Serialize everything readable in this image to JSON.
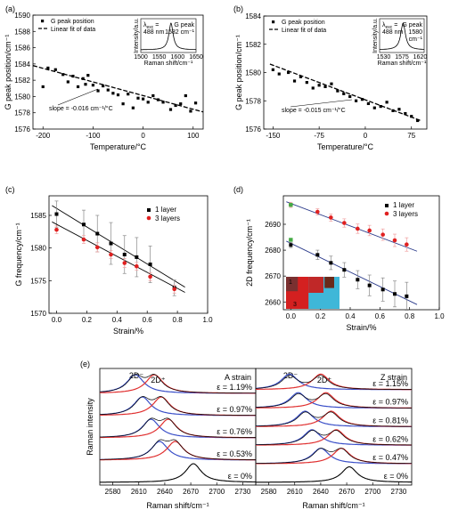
{
  "chart_data": [
    {
      "type": "scatter",
      "panel_label": "(a)",
      "xlabel": "Temperature/°C",
      "ylabel": "G peak position/cm⁻¹",
      "xlim": [
        -220,
        120
      ],
      "ylim": [
        1576,
        1590
      ],
      "xticks": [
        -200,
        -100,
        0,
        100
      ],
      "yticks": [
        1576,
        1578,
        1580,
        1582,
        1584,
        1586,
        1588,
        1590
      ],
      "legend": [
        "G peak position",
        "Linear fit of data"
      ],
      "annotation": "slope = -0.016 cm⁻¹/°C",
      "fit": {
        "x": [
          -220,
          120
        ],
        "y": [
          1583.8,
          1578.1
        ]
      },
      "series": [
        {
          "name": "G peak position",
          "x": [
            -200,
            -190,
            -175,
            -160,
            -150,
            -140,
            -130,
            -120,
            -115,
            -110,
            -100,
            -90,
            -80,
            -70,
            -60,
            -50,
            -40,
            -30,
            -20,
            -10,
            0,
            10,
            20,
            30,
            40,
            55,
            65,
            75,
            85,
            95,
            105
          ],
          "y": [
            1581.2,
            1583.5,
            1583.3,
            1582.7,
            1581.8,
            1582.5,
            1581.2,
            1582.2,
            1581.5,
            1582.6,
            1581.4,
            1580.7,
            1581.3,
            1580.8,
            1580.4,
            1580.2,
            1579.1,
            1580.3,
            1578.6,
            1579.8,
            1579.7,
            1579.3,
            1580.1,
            1579.6,
            1579.3,
            1578.4,
            1578.9,
            1579.1,
            1580.1,
            1578.2,
            1579.2
          ]
        }
      ],
      "inset": {
        "xlabel": "Raman shift/cm⁻¹",
        "ylabel": "Intensity/a.u.",
        "xticks": [
          1500,
          1550,
          1600,
          1650
        ],
        "lines": [
          "λ",
          "exc",
          "=",
          "488 nm"
        ],
        "peak_lines": [
          "G peak",
          "1582 cm⁻¹"
        ]
      }
    },
    {
      "type": "scatter",
      "panel_label": "(b)",
      "xlabel": "Temperature/°C",
      "ylabel": "G peak position/cm⁻¹",
      "xlim": [
        -165,
        100
      ],
      "ylim": [
        1576,
        1584
      ],
      "xticks": [
        -150,
        -75,
        0,
        75
      ],
      "yticks": [
        1576,
        1578,
        1580,
        1582,
        1584
      ],
      "legend": [
        "G peak position",
        "Linear fit of data"
      ],
      "annotation": "slope = -0.015 cm⁻¹/°C",
      "fit": {
        "x": [
          -155,
          90
        ],
        "y": [
          1580.6,
          1576.6
        ]
      },
      "series": [
        {
          "name": "G peak position",
          "x": [
            -150,
            -140,
            -125,
            -115,
            -105,
            -95,
            -85,
            -75,
            -65,
            -55,
            -45,
            -35,
            -25,
            -15,
            -5,
            5,
            15,
            25,
            35,
            45,
            55,
            65,
            75,
            85
          ],
          "y": [
            1580.2,
            1579.9,
            1580.0,
            1579.4,
            1579.7,
            1579.3,
            1578.9,
            1579.1,
            1579.0,
            1579.2,
            1578.7,
            1578.5,
            1578.3,
            1578.0,
            1578.1,
            1577.8,
            1577.5,
            1577.6,
            1577.9,
            1577.3,
            1577.4,
            1577.1,
            1576.9,
            1576.6
          ]
        }
      ],
      "inset": {
        "xlabel": "Raman shift/cm⁻¹",
        "ylabel": "Intensity/a.u.",
        "xticks": [
          1530,
          1575,
          1620
        ],
        "lines": [
          "λ",
          "exc",
          "=",
          "488 nm"
        ],
        "peak_lines": [
          "G peak",
          "1580",
          "cm⁻¹"
        ]
      }
    },
    {
      "type": "scatter",
      "panel_label": "(c)",
      "xlabel": "Strain/%",
      "ylabel": "G frequency/cm⁻¹",
      "xlim": [
        -0.05,
        1.0
      ],
      "ylim": [
        1570,
        1588
      ],
      "xticks": [
        0.0,
        0.2,
        0.4,
        0.6,
        0.8,
        1.0
      ],
      "yticks": [
        1570,
        1575,
        1580,
        1585
      ],
      "legend": [
        "1 layer",
        "3 layers"
      ],
      "series": [
        {
          "name": "1 layer",
          "color": "#000000",
          "marker": "square",
          "x": [
            0.0,
            0.18,
            0.27,
            0.36,
            0.45,
            0.53,
            0.62,
            0.78
          ],
          "y": [
            1585.2,
            1583.6,
            1582.2,
            1580.7,
            1579.0,
            1578.6,
            1577.5,
            1573.9
          ],
          "err": [
            2.0,
            2.2,
            2.8,
            3.2,
            2.9,
            3.0,
            2.8,
            1.2
          ],
          "fit": {
            "x": [
              -0.03,
              0.85
            ],
            "y": [
              1586.5,
              1574.0
            ]
          }
        },
        {
          "name": "3 layers",
          "color": "#e02020",
          "marker": "circle",
          "x": [
            0.0,
            0.18,
            0.27,
            0.36,
            0.45,
            0.53,
            0.62,
            0.78
          ],
          "y": [
            1582.8,
            1581.3,
            1580.1,
            1579.0,
            1577.7,
            1577.2,
            1575.6,
            1573.7
          ],
          "err": [
            0.6,
            0.6,
            0.7,
            0.6,
            0.7,
            0.6,
            0.6,
            0.6
          ],
          "fit": {
            "x": [
              -0.03,
              0.85
            ],
            "y": [
              1584.0,
              1573.2
            ]
          }
        }
      ]
    },
    {
      "type": "scatter",
      "panel_label": "(d)",
      "xlabel": "Strain/%",
      "ylabel": "2D frequency/cm⁻¹",
      "xlim": [
        -0.05,
        1.0
      ],
      "ylim": [
        2657,
        2701
      ],
      "xticks": [
        0.0,
        0.2,
        0.4,
        0.6,
        0.8,
        1.0
      ],
      "yticks": [
        2660,
        2670,
        2680,
        2690
      ],
      "legend": [
        "1 layer",
        "3 layers"
      ],
      "inset_labels": [
        "1",
        "3"
      ],
      "series": [
        {
          "name": "1 layer",
          "color": "#000000",
          "marker": "square",
          "x": [
            0.0,
            0.18,
            0.27,
            0.36,
            0.45,
            0.53,
            0.62,
            0.7,
            0.78
          ],
          "y": [
            2682.0,
            2678.2,
            2675.1,
            2672.4,
            2668.6,
            2666.4,
            2664.8,
            2663.1,
            2662.2
          ],
          "err": [
            1.0,
            1.8,
            2.6,
            2.8,
            3.5,
            4.0,
            4.5,
            5.0,
            5.4
          ],
          "fit": {
            "x": [
              -0.03,
              0.85
            ],
            "y": [
              2683.5,
              2659.0
            ]
          }
        },
        {
          "name": "3 layers",
          "color": "#e02020",
          "marker": "circle",
          "x": [
            0.0,
            0.18,
            0.27,
            0.36,
            0.45,
            0.53,
            0.62,
            0.7,
            0.78
          ],
          "y": [
            2697.5,
            2694.8,
            2692.6,
            2690.5,
            2688.3,
            2687.6,
            2686.0,
            2683.8,
            2682.2
          ],
          "err": [
            1.0,
            1.2,
            1.4,
            1.6,
            1.8,
            2.0,
            2.2,
            2.4,
            2.6
          ],
          "fit": {
            "x": [
              -0.03,
              0.85
            ],
            "y": [
              2698.7,
              2679.6
            ]
          }
        }
      ],
      "highlight_points": [
        {
          "x": 0.0,
          "y": 2697.5,
          "color": "#44aa44"
        },
        {
          "x": 0.0,
          "y": 2684.0,
          "color": "#44aa44"
        }
      ]
    },
    {
      "type": "line",
      "panel_label": "(e)",
      "xlabel": "Raman shift/cm⁻¹",
      "ylabel": "Raman intensity",
      "xticks": [
        2580,
        2610,
        2640,
        2670,
        2700,
        2730
      ],
      "xlim": [
        2565,
        2745
      ],
      "panels": [
        {
          "title": "A strain",
          "peak_labels": [
            "2D⁻",
            "2D⁺"
          ],
          "strains": [
            "ε = 1.19%",
            "ε = 0.97%",
            "ε = 0.76%",
            "ε = 0.53%",
            "ε = 0%"
          ],
          "blue_peaks": [
            2606,
            2614,
            2624,
            2634,
            null
          ],
          "red_peaks": [
            2628,
            2636,
            2644,
            2652,
            null
          ],
          "black_peak": 2673
        },
        {
          "title": "Z strain",
          "peak_labels": [
            "2D⁻",
            "2D⁺"
          ],
          "strains": [
            "ε = 1.15%",
            "ε = 0.97%",
            "ε = 0.81%",
            "ε = 0.62%",
            "ε = 0.47%",
            "ε = 0%"
          ],
          "blue_peaks": [
            2604,
            2614,
            2622,
            2630,
            2640,
            null
          ],
          "red_peaks": [
            2640,
            2646,
            2652,
            2658,
            2664,
            null
          ],
          "black_peak": 2673
        }
      ]
    }
  ]
}
